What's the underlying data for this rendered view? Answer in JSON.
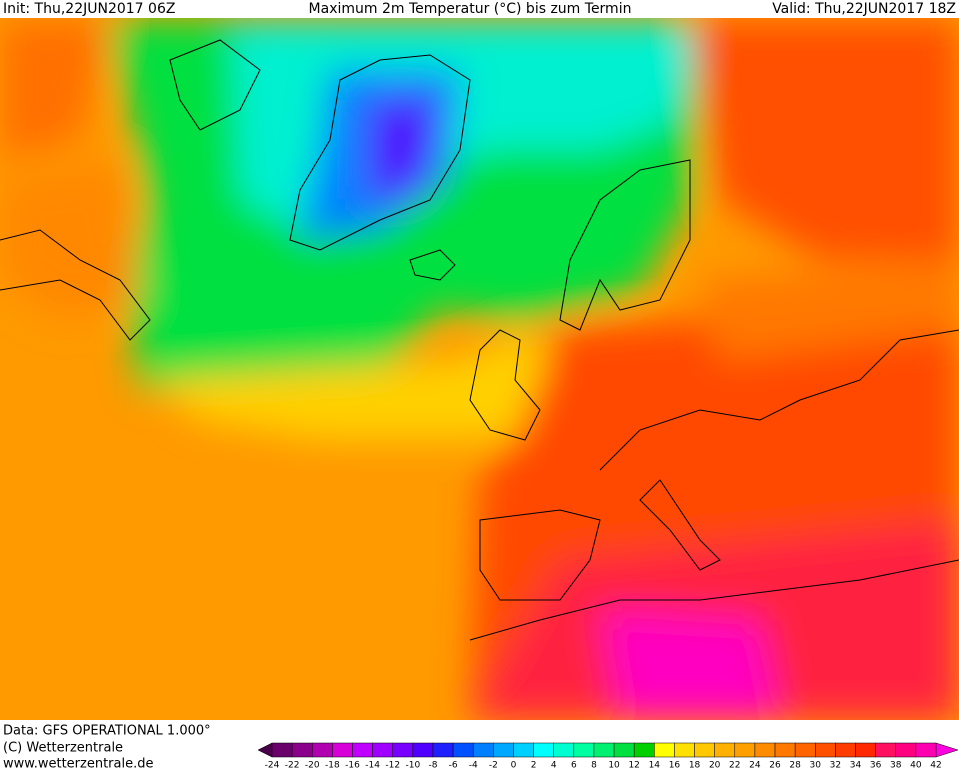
{
  "header": {
    "init": "Init: Thu,22JUN2017 06Z",
    "title": "Maximum 2m Temperatur (°C) bis zum Termin",
    "valid": "Valid: Thu,22JUN2017 18Z"
  },
  "footer": {
    "lines": [
      "Data: GFS OPERATIONAL 1.000°",
      "(C) Wetterzentrale",
      "www.wetterzentrale.de"
    ]
  },
  "colorbar": {
    "ticks": [
      -24,
      -22,
      -20,
      -18,
      -16,
      -14,
      -12,
      -10,
      -8,
      -6,
      -4,
      -2,
      0,
      2,
      4,
      6,
      8,
      10,
      12,
      14,
      16,
      18,
      20,
      22,
      24,
      26,
      28,
      30,
      32,
      34,
      36,
      38,
      40,
      42
    ],
    "colors": [
      "#6a006a",
      "#8a008a",
      "#b000b0",
      "#d800d8",
      "#c000ff",
      "#a000ff",
      "#7800ff",
      "#5000ff",
      "#2020ff",
      "#0050ff",
      "#0080ff",
      "#00a8ff",
      "#00d0ff",
      "#00ffff",
      "#00ffd0",
      "#00ffa0",
      "#00f070",
      "#00e040",
      "#00d000",
      "#ffff00",
      "#ffe000",
      "#ffc800",
      "#ffb000",
      "#ffa000",
      "#ff8c00",
      "#ff7800",
      "#ff6400",
      "#ff5000",
      "#ff3c00",
      "#ff2800",
      "#ff1060",
      "#ff0080",
      "#ff00b0"
    ],
    "low_color": "#4a0048",
    "high_color": "#ff00e0"
  }
}
